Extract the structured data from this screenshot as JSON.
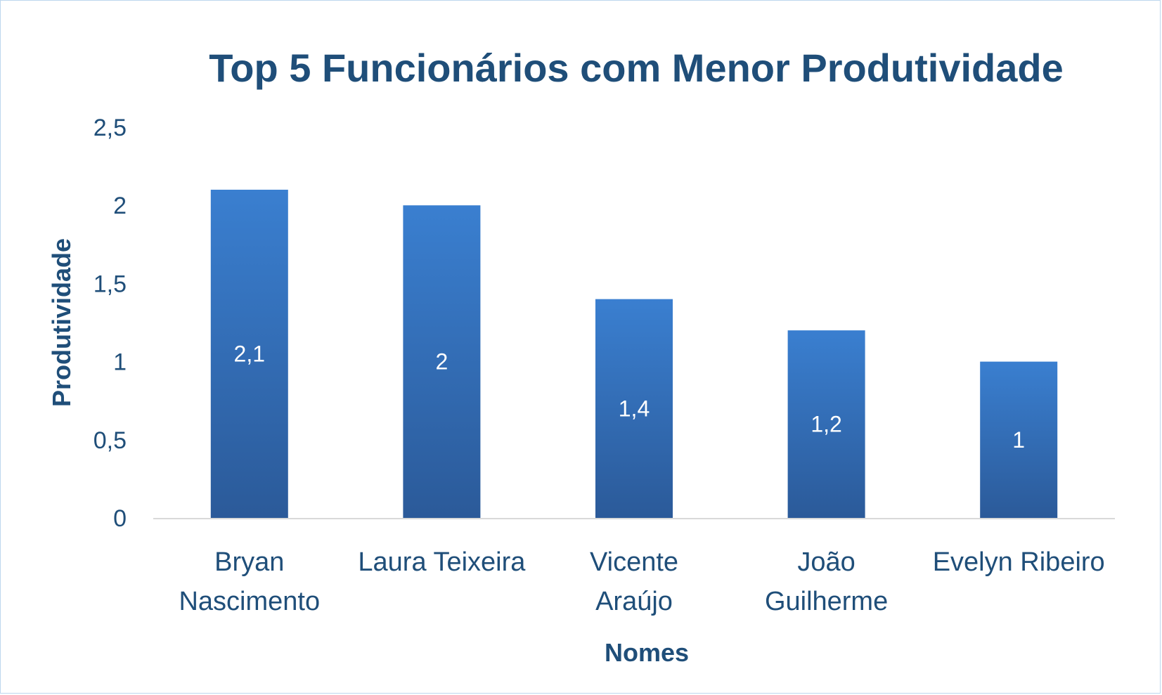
{
  "chart_data": {
    "type": "bar",
    "title": "Top 5 Funcionários com Menor Produtividade",
    "xlabel": "Nomes",
    "ylabel": "Produtividade",
    "categories": [
      [
        "Bryan",
        "Nascimento"
      ],
      [
        "Laura Teixeira"
      ],
      [
        "Vicente",
        "Araújo"
      ],
      [
        "João",
        "Guilherme"
      ],
      [
        "Evelyn Ribeiro"
      ]
    ],
    "values": [
      2.1,
      2,
      1.4,
      1.2,
      1
    ],
    "value_labels": [
      "2,1",
      "2",
      "1,4",
      "1,2",
      "1"
    ],
    "ylim": [
      0,
      2.5
    ],
    "yticks": [
      0,
      0.5,
      1,
      1.5,
      2,
      2.5
    ],
    "ytick_labels": [
      "0",
      "0,5",
      "1",
      "1,5",
      "2",
      "2,5"
    ],
    "grid": false,
    "legend": "none",
    "colors": {
      "text": "#1f4e79",
      "bar_top": "#3a7fd0",
      "bar_bottom": "#2b5a99",
      "axis_line": "#d9d9d9",
      "data_label": "#ffffff",
      "border": "#bdd7ee"
    }
  }
}
